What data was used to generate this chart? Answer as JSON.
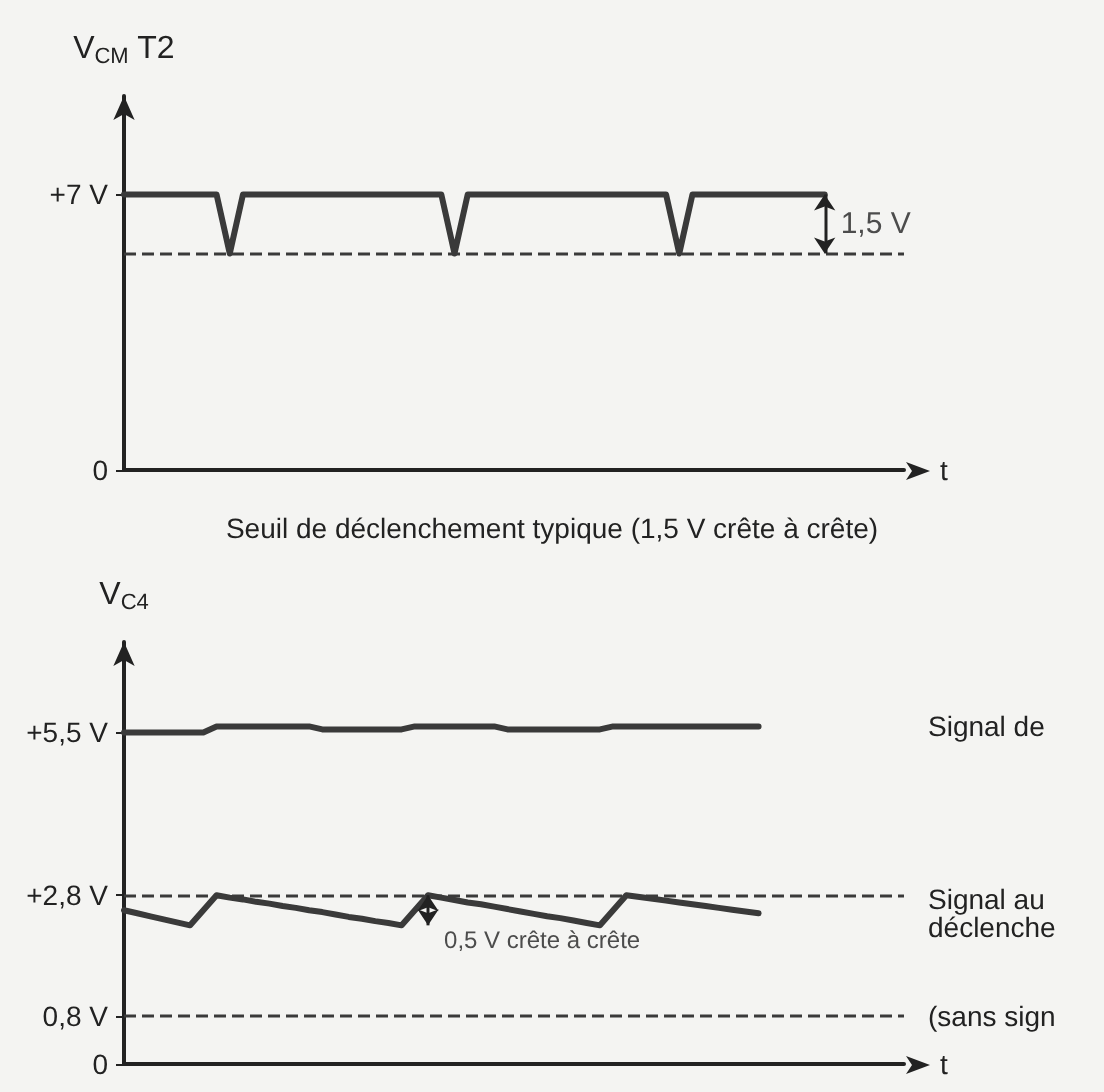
{
  "chart_data": [
    {
      "type": "line",
      "ylabel": "V$_{CM}$ T2",
      "xlabel": "t",
      "categories": [
        null,
        null,
        null,
        null,
        null,
        null,
        null,
        null,
        null,
        null,
        null,
        null,
        null,
        null,
        null,
        null,
        null,
        null,
        null,
        null,
        null,
        null,
        null,
        null,
        null,
        null,
        null,
        null,
        null,
        null,
        null,
        null,
        null,
        null,
        null,
        null,
        null,
        null,
        null,
        null,
        null,
        null,
        null,
        null,
        null,
        null,
        null,
        null,
        null,
        null,
        null,
        null,
        null,
        null,
        null,
        null,
        null,
        null,
        null,
        null
      ],
      "series": [
        {
          "color": "#3a3a3a",
          "values": [
            7,
            7,
            7,
            7,
            7,
            7,
            7,
            7,
            5.5,
            7,
            7,
            7,
            7,
            7,
            7,
            7,
            7,
            7,
            7,
            7,
            7,
            7,
            7,
            7,
            7,
            5.5,
            7,
            7,
            7,
            7,
            7,
            7,
            7,
            7,
            7,
            7,
            7,
            7,
            7,
            7,
            7,
            7,
            5.5,
            7,
            7,
            7,
            7,
            7,
            7,
            7,
            7,
            7,
            7,
            7,
            null,
            null,
            null,
            null,
            null,
            null
          ]
        }
      ],
      "ylim": [
        0,
        9.5
      ],
      "yticks": [
        0,
        {
          "value": 7,
          "label": "+7 V"
        }
      ],
      "tick_labels": "y",
      "ref_lines": [
        {
          "axis": "y",
          "value": 5.5,
          "label": null,
          "color": "#3a3a3a",
          "line_style": "dashed"
        }
      ],
      "annotations": [
        "1,5 V",
        "Seuil de déclenchement typique (1,5 V crête à crête)"
      ]
    },
    {
      "type": "line",
      "ylabel": "V$_{C4}$",
      "xlabel": "t",
      "categories": [
        null,
        null,
        null,
        null,
        null,
        null,
        null,
        null,
        null,
        null,
        null,
        null,
        null,
        null,
        null,
        null,
        null,
        null,
        null,
        null,
        null,
        null,
        null,
        null,
        null,
        null,
        null,
        null,
        null,
        null,
        null,
        null,
        null,
        null,
        null,
        null,
        null,
        null,
        null,
        null,
        null,
        null,
        null,
        null,
        null,
        null,
        null,
        null,
        null,
        null,
        null,
        null,
        null,
        null,
        null,
        null,
        null,
        null,
        null,
        null
      ],
      "series": [
        {
          "name": "Signal de",
          "color": "#3a3a3a",
          "values": [
            5.5,
            5.5,
            5.5,
            5.5,
            5.5,
            5.5,
            5.5,
            5.6,
            5.6,
            5.6,
            5.6,
            5.6,
            5.6,
            5.6,
            5.6,
            5.55,
            5.55,
            5.55,
            5.55,
            5.55,
            5.55,
            5.55,
            5.6,
            5.6,
            5.6,
            5.6,
            5.6,
            5.6,
            5.6,
            5.55,
            5.55,
            5.55,
            5.55,
            5.55,
            5.55,
            5.55,
            5.55,
            5.6,
            5.6,
            5.6,
            5.6,
            5.6,
            5.6,
            5.6,
            5.6,
            5.6,
            5.6,
            5.6,
            5.6,
            null,
            null,
            null,
            null,
            null,
            null,
            null,
            null,
            null,
            null,
            null
          ]
        },
        {
          "name": "Signal au déclenche",
          "color": "#3a3a3a",
          "values": [
            2.55,
            2.5,
            2.45,
            2.4,
            2.35,
            2.3,
            2.55,
            2.8,
            2.76,
            2.73,
            2.69,
            2.66,
            2.62,
            2.59,
            2.55,
            2.52,
            2.48,
            2.44,
            2.41,
            2.37,
            2.34,
            2.3,
            2.55,
            2.8,
            2.76,
            2.72,
            2.68,
            2.65,
            2.61,
            2.57,
            2.53,
            2.49,
            2.45,
            2.42,
            2.38,
            2.34,
            2.3,
            2.55,
            2.8,
            2.77,
            2.74,
            2.71,
            2.68,
            2.65,
            2.62,
            2.59,
            2.56,
            2.53,
            2.5,
            null,
            null,
            null,
            null,
            null,
            null,
            null,
            null,
            null,
            null,
            null
          ]
        }
      ],
      "ylim": [
        0,
        7
      ],
      "yticks": [
        0,
        {
          "value": 0.8,
          "label": "0,8 V"
        },
        {
          "value": 2.8,
          "label": "+2,8 V"
        },
        {
          "value": 5.5,
          "label": "+5,5 V"
        }
      ],
      "tick_labels": "y",
      "ref_lines": [
        {
          "axis": "y",
          "value": 2.8,
          "label": null,
          "color": "#3a3a3a",
          "line_style": "dashed"
        },
        {
          "axis": "y",
          "value": 0.8,
          "label": "(sans sign",
          "color": "#3a3a3a",
          "line_style": "dashed"
        }
      ],
      "annotations": [
        "0,5 V crête à crête"
      ]
    }
  ]
}
